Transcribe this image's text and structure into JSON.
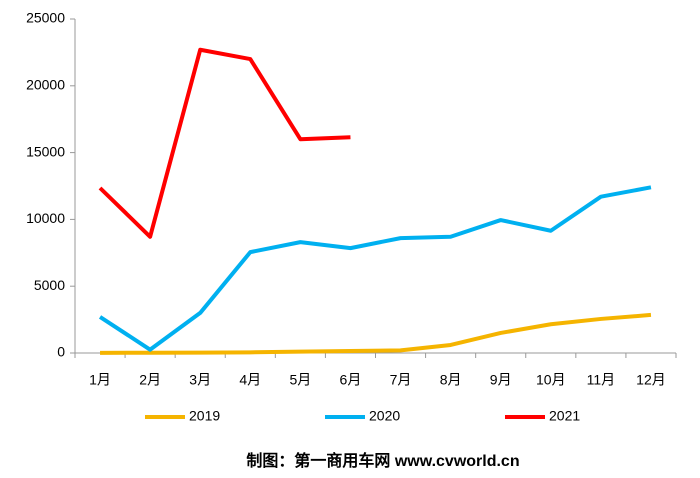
{
  "chart_data": {
    "type": "line",
    "categories": [
      "1月",
      "2月",
      "3月",
      "4月",
      "5月",
      "6月",
      "7月",
      "8月",
      "9月",
      "10月",
      "11月",
      "12月"
    ],
    "series": [
      {
        "name": "2019",
        "color": "#f5b400",
        "values": [
          10,
          20,
          30,
          50,
          100,
          150,
          200,
          600,
          1500,
          2150,
          2550,
          2850
        ]
      },
      {
        "name": "2020",
        "color": "#00b0f0",
        "values": [
          2700,
          250,
          3000,
          7550,
          8300,
          7850,
          8600,
          8700,
          9950,
          9150,
          11700,
          12400
        ]
      },
      {
        "name": "2021",
        "color": "#ff0000",
        "values": [
          12350,
          8700,
          22700,
          22000,
          16000,
          16150,
          null,
          null,
          null,
          null,
          null,
          null
        ]
      }
    ],
    "ylim": [
      0,
      25000
    ],
    "yticks": [
      0,
      5000,
      10000,
      15000,
      20000,
      25000
    ],
    "legend": "bottom",
    "footer": "制图：第一商用车网 www.cvworld.cn"
  }
}
